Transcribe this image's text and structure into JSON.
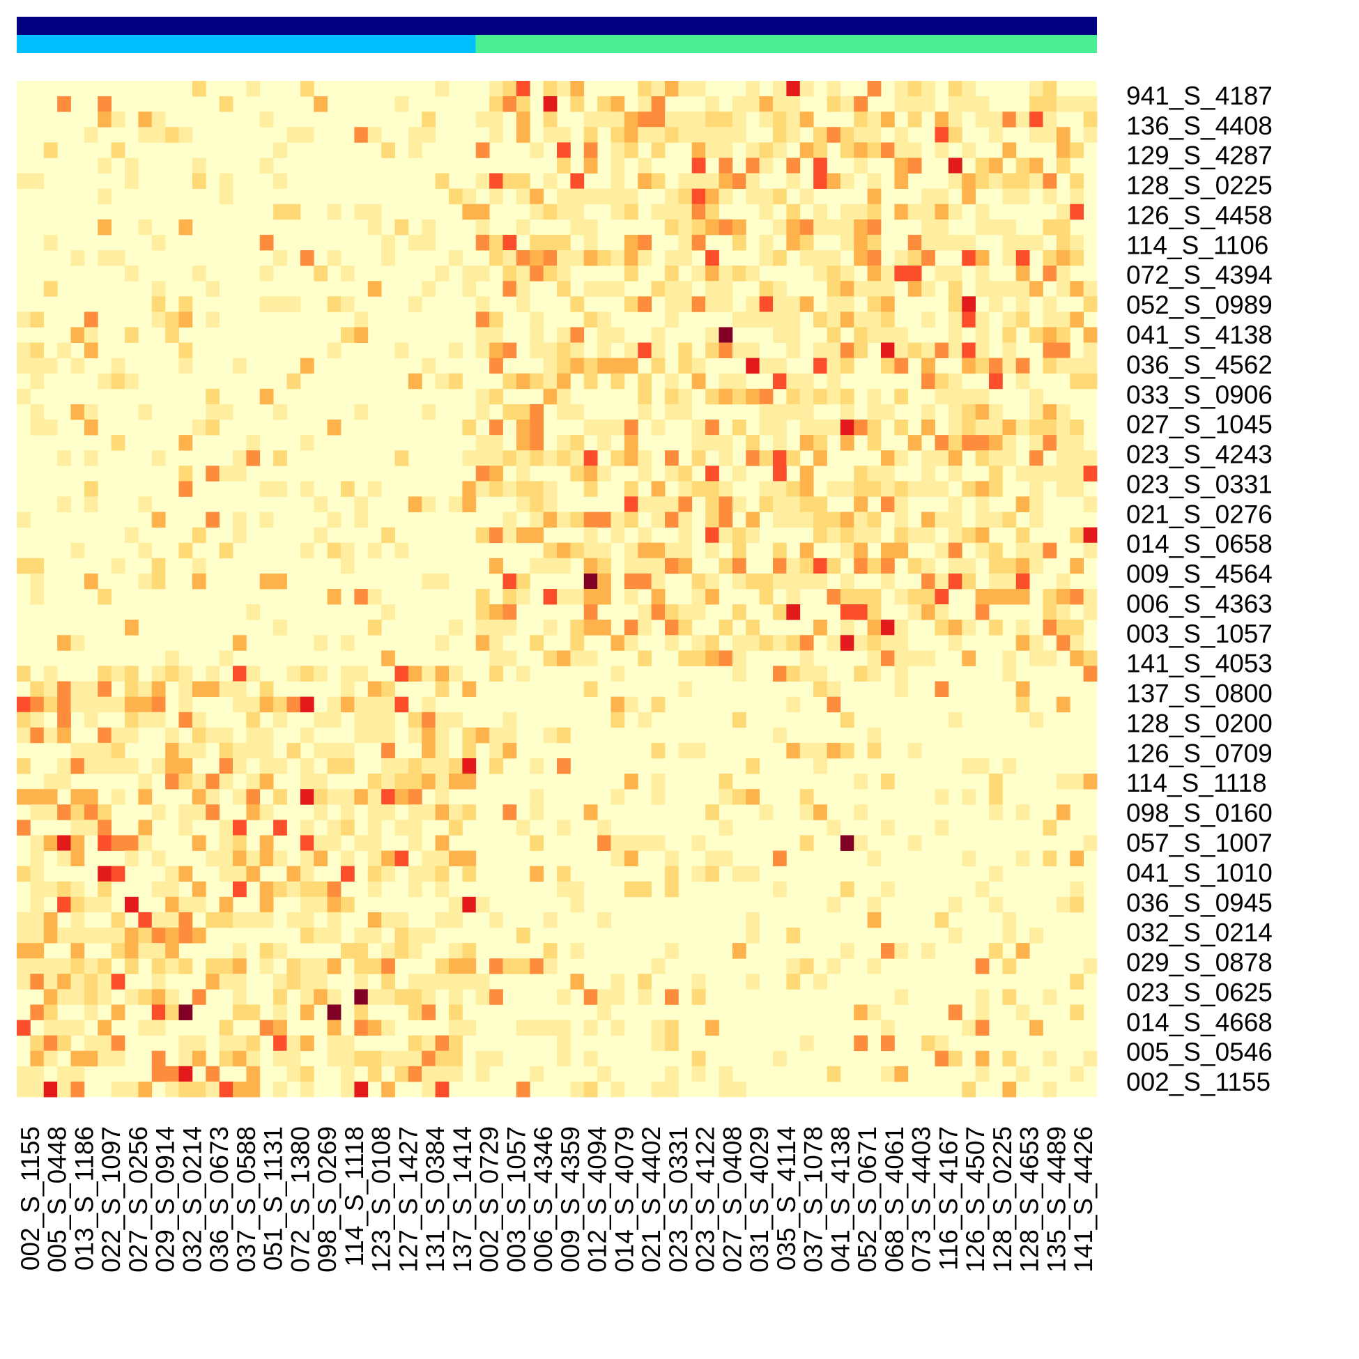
{
  "chart_data": {
    "type": "heatmap",
    "title": "",
    "xlabel": "",
    "ylabel": "",
    "palette": [
      "#ffffcc",
      "#ffeda0",
      "#fed976",
      "#feb24c",
      "#fd8d3c",
      "#fc4e2a",
      "#e31a1c",
      "#bd0026",
      "#800026"
    ],
    "annotation_bar_1": {
      "segments": [
        {
          "fraction": 1.0,
          "color": "#000080"
        }
      ]
    },
    "annotation_bar_2": {
      "segments": [
        {
          "fraction": 0.425,
          "color": "#00bfff"
        },
        {
          "fraction": 0.575,
          "color": "#4aee94"
        }
      ]
    },
    "grid_rows": 66,
    "grid_cols": 80,
    "group_split_fraction": 0.425,
    "y_tick_labels": [
      "941_S_4187",
      "136_S_4408",
      "129_S_4287",
      "128_S_0225",
      "126_S_4458",
      "114_S_1106",
      "072_S_4394",
      "052_S_0989",
      "041_S_4138",
      "036_S_4562",
      "033_S_0906",
      "027_S_1045",
      "023_S_4243",
      "023_S_0331",
      "021_S_0276",
      "014_S_0658",
      "009_S_4564",
      "006_S_4363",
      "003_S_1057",
      "141_S_4053",
      "137_S_0800",
      "128_S_0200",
      "126_S_0709",
      "114_S_1118",
      "098_S_0160",
      "057_S_1007",
      "041_S_1010",
      "036_S_0945",
      "032_S_0214",
      "029_S_0878",
      "023_S_0625",
      "014_S_4668",
      "005_S_0546",
      "002_S_1155"
    ],
    "x_tick_labels": [
      "002_S_1155",
      "005_S_0448",
      "013_S_1186",
      "022_S_1097",
      "027_S_0256",
      "029_S_0914",
      "032_S_0214",
      "036_S_0673",
      "037_S_0588",
      "051_S_1131",
      "072_S_1380",
      "098_S_0269",
      "114_S_1118",
      "123_S_0108",
      "127_S_1427",
      "131_S_0384",
      "137_S_1414",
      "002_S_0729",
      "003_S_1057",
      "006_S_4346",
      "009_S_4359",
      "012_S_4094",
      "014_S_4079",
      "021_S_4402",
      "023_S_0331",
      "023_S_4122",
      "027_S_0408",
      "031_S_4029",
      "035_S_4114",
      "037_S_1078",
      "041_S_4138",
      "052_S_0671",
      "068_S_4061",
      "073_S_4403",
      "116_S_4167",
      "126_S_4507",
      "128_S_0225",
      "128_S_4653",
      "135_S_4489",
      "141_S_4426"
    ]
  }
}
